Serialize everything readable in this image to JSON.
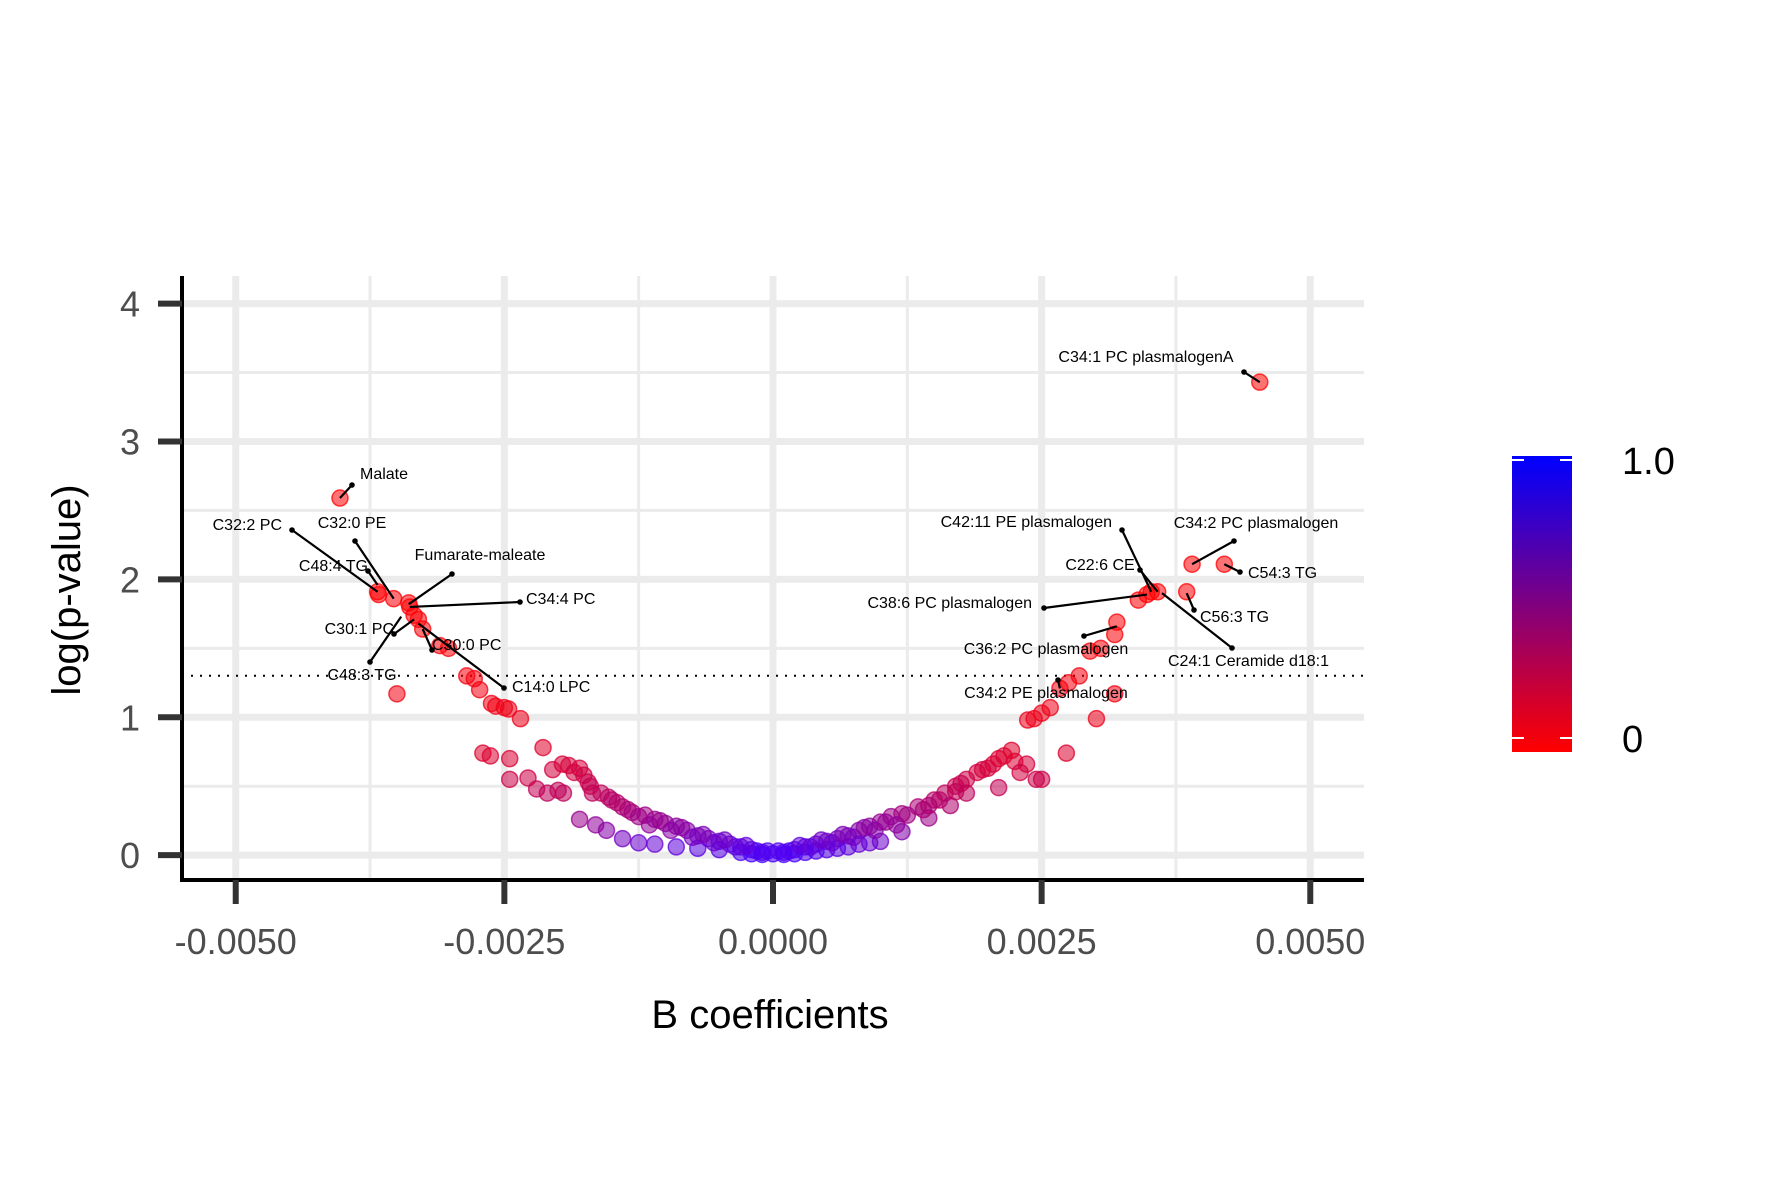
{
  "chart_data": {
    "type": "scatter",
    "xlabel": "B coefficients",
    "ylabel": "log(p-value)",
    "xlim": [
      -0.0055,
      0.0055
    ],
    "ylim": [
      -0.18,
      4.2
    ],
    "x_ticks": [
      -0.005,
      -0.0025,
      0.0,
      0.0025,
      0.005
    ],
    "x_tick_labels": [
      "-0.0050",
      "-0.0025",
      "0.0000",
      "0.0025",
      "0.0050"
    ],
    "y_ticks": [
      0,
      1,
      2,
      3,
      4
    ],
    "y_tick_labels": [
      "0",
      "1",
      "2",
      "3",
      "4"
    ],
    "grid": true,
    "threshold_line": {
      "y": 1.301,
      "style": "dotted"
    },
    "color_scale": {
      "min_label": "0",
      "max_label": "1.0",
      "low_color": "#ff0000",
      "high_color": "#0000ff",
      "legend_position": "right"
    },
    "labeled_points": [
      {
        "label": "C34:1 PC plasmalogenA",
        "x": 0.00453,
        "y": 3.43
      },
      {
        "label": "Malate",
        "x": -0.00403,
        "y": 2.59
      },
      {
        "label": "C32:2 PC",
        "x": -0.00368,
        "y": 1.91
      },
      {
        "label": "C32:0 PE",
        "x": -0.00353,
        "y": 1.86
      },
      {
        "label": "C48:4 TG",
        "x": -0.00368,
        "y": 1.96
      },
      {
        "label": "Fumarate-maleate",
        "x": -0.00339,
        "y": 1.82
      },
      {
        "label": "C34:4 PC",
        "x": -0.00338,
        "y": 1.8
      },
      {
        "label": "C30:1 PC",
        "x": -0.00334,
        "y": 1.71
      },
      {
        "label": "C30:0 PC",
        "x": -0.00326,
        "y": 1.64
      },
      {
        "label": "C48:3 TG",
        "x": -0.00346,
        "y": 1.73
      },
      {
        "label": "C14:0 LPC",
        "x": -0.0033,
        "y": 1.68
      },
      {
        "label": "C42:11 PE plasmalogen",
        "x": 0.00352,
        "y": 1.91
      },
      {
        "label": "C34:2 PC plasmalogen",
        "x": 0.0039,
        "y": 2.11
      },
      {
        "label": "C54:3 TG",
        "x": 0.0042,
        "y": 2.11
      },
      {
        "label": "C22:6 CE",
        "x": 0.00358,
        "y": 1.91
      },
      {
        "label": "C38:6 PC plasmalogen",
        "x": 0.00348,
        "y": 1.89
      },
      {
        "label": "C56:3 TG",
        "x": 0.00385,
        "y": 1.9
      },
      {
        "label": "C36:2 PC plasmalogen",
        "x": 0.0032,
        "y": 1.66
      },
      {
        "label": "C24:1 Ceramide d18:1",
        "x": 0.00362,
        "y": 1.9
      },
      {
        "label": "C34:2 PE plasmalogen",
        "x": 0.00267,
        "y": 1.21
      }
    ],
    "points": [
      [
        0.00453,
        3.43
      ],
      [
        -0.00403,
        2.59
      ],
      [
        0.0039,
        2.11
      ],
      [
        0.0042,
        2.11
      ],
      [
        -0.00368,
        1.91
      ],
      [
        -0.00367,
        1.89
      ],
      [
        -0.00353,
        1.86
      ],
      [
        -0.00339,
        1.83
      ],
      [
        -0.00338,
        1.8
      ],
      [
        -0.00334,
        1.74
      ],
      [
        -0.0033,
        1.71
      ],
      [
        -0.00326,
        1.64
      ],
      [
        0.00352,
        1.91
      ],
      [
        0.00358,
        1.91
      ],
      [
        0.00348,
        1.89
      ],
      [
        0.00385,
        1.91
      ],
      [
        0.0034,
        1.85
      ],
      [
        0.0032,
        1.69
      ],
      [
        0.00318,
        1.6
      ],
      [
        0.00305,
        1.5
      ],
      [
        0.00295,
        1.48
      ],
      [
        0.00285,
        1.3
      ],
      [
        0.00275,
        1.25
      ],
      [
        0.00267,
        1.21
      ],
      [
        -0.00302,
        1.5
      ],
      [
        -0.0031,
        1.52
      ],
      [
        -0.00285,
        1.3
      ],
      [
        -0.00278,
        1.28
      ],
      [
        -0.00273,
        1.2
      ],
      [
        -0.00262,
        1.1
      ],
      [
        -0.00258,
        1.08
      ],
      [
        -0.0025,
        1.07
      ],
      [
        -0.00246,
        1.06
      ],
      [
        -0.00235,
        0.99
      ],
      [
        -0.0035,
        1.17
      ],
      [
        0.00318,
        1.17
      ],
      [
        0.00301,
        0.99
      ],
      [
        0.00273,
        0.74
      ],
      [
        0.00258,
        1.07
      ],
      [
        0.0025,
        1.03
      ],
      [
        0.00243,
        0.99
      ],
      [
        0.00237,
        0.98
      ],
      [
        -0.0027,
        0.74
      ],
      [
        -0.00263,
        0.72
      ],
      [
        -0.00245,
        0.7
      ],
      [
        -0.00245,
        0.55
      ],
      [
        -0.00214,
        0.78
      ],
      [
        -0.00196,
        0.66
      ],
      [
        -0.0019,
        0.65
      ],
      [
        -0.0018,
        0.63
      ],
      [
        -0.00176,
        0.58
      ],
      [
        -0.00172,
        0.53
      ],
      [
        -0.00168,
        0.45
      ],
      [
        -0.00153,
        0.42
      ],
      [
        -0.0014,
        0.35
      ],
      [
        -0.00131,
        0.31
      ],
      [
        -0.00119,
        0.29
      ],
      [
        -0.0011,
        0.26
      ],
      [
        -0.001,
        0.23
      ],
      [
        -0.0009,
        0.21
      ],
      [
        -0.0008,
        0.18
      ],
      [
        -0.0007,
        0.14
      ],
      [
        -0.0006,
        0.12
      ],
      [
        -0.0005,
        0.1
      ],
      [
        -0.0004,
        0.08
      ],
      [
        -0.0003,
        0.06
      ],
      [
        -0.0002,
        0.04
      ],
      [
        -0.0001,
        0.02
      ],
      [
        0.0,
        0.01
      ],
      [
        0.0001,
        0.02
      ],
      [
        0.0002,
        0.04
      ],
      [
        0.0003,
        0.06
      ],
      [
        0.0004,
        0.08
      ],
      [
        0.0005,
        0.1
      ],
      [
        0.0006,
        0.12
      ],
      [
        0.0007,
        0.14
      ],
      [
        0.0008,
        0.18
      ],
      [
        0.0009,
        0.21
      ],
      [
        0.001,
        0.24
      ],
      [
        0.0011,
        0.28
      ],
      [
        0.0012,
        0.3
      ],
      [
        0.00135,
        0.35
      ],
      [
        0.0015,
        0.4
      ],
      [
        0.0016,
        0.45
      ],
      [
        0.0017,
        0.5
      ],
      [
        0.0018,
        0.55
      ],
      [
        0.0019,
        0.6
      ],
      [
        0.002,
        0.63
      ],
      [
        0.0021,
        0.7
      ],
      [
        0.00225,
        0.68
      ],
      [
        0.00236,
        0.66
      ],
      [
        0.0025,
        0.55
      ],
      [
        0.00245,
        0.55
      ],
      [
        0.0023,
        0.6
      ],
      [
        0.0021,
        0.49
      ],
      [
        0.0018,
        0.45
      ],
      [
        0.00165,
        0.36
      ],
      [
        0.00145,
        0.27
      ],
      [
        0.0012,
        0.17
      ],
      [
        0.001,
        0.1
      ],
      [
        0.0009,
        0.09
      ],
      [
        0.0008,
        0.08
      ],
      [
        0.0007,
        0.06
      ],
      [
        0.0006,
        0.05
      ],
      [
        0.0005,
        0.04
      ],
      [
        0.0004,
        0.03
      ],
      [
        0.0003,
        0.02
      ],
      [
        0.0002,
        0.01
      ],
      [
        0.0001,
        0.005
      ],
      [
        -0.0001,
        0.005
      ],
      [
        -0.0002,
        0.01
      ],
      [
        -0.0003,
        0.02
      ],
      [
        -0.0005,
        0.04
      ],
      [
        -0.0007,
        0.05
      ],
      [
        -0.0009,
        0.06
      ],
      [
        -0.0011,
        0.08
      ],
      [
        -0.00125,
        0.09
      ],
      [
        -0.0014,
        0.12
      ],
      [
        -0.00155,
        0.18
      ],
      [
        -0.00165,
        0.22
      ],
      [
        -0.0018,
        0.26
      ],
      [
        -0.00195,
        0.45
      ],
      [
        -0.002,
        0.47
      ],
      [
        -0.0021,
        0.45
      ],
      [
        -0.0022,
        0.48
      ],
      [
        -0.00228,
        0.56
      ],
      [
        -0.0016,
        0.45
      ],
      [
        -0.0015,
        0.4
      ],
      [
        -0.00135,
        0.33
      ],
      [
        -0.00115,
        0.22
      ],
      [
        -0.00095,
        0.18
      ],
      [
        -0.00075,
        0.13
      ],
      [
        -0.00055,
        0.09
      ],
      [
        -0.00035,
        0.06
      ],
      [
        -0.00015,
        0.03
      ],
      [
        0.00015,
        0.03
      ],
      [
        0.00035,
        0.06
      ],
      [
        0.00055,
        0.09
      ],
      [
        0.00075,
        0.13
      ],
      [
        0.00095,
        0.18
      ],
      [
        0.00115,
        0.22
      ],
      [
        0.0014,
        0.33
      ],
      [
        0.00155,
        0.4
      ],
      [
        0.00175,
        0.52
      ],
      [
        0.00195,
        0.62
      ],
      [
        0.00205,
        0.66
      ],
      [
        0.00215,
        0.72
      ],
      [
        0.00222,
        0.76
      ],
      [
        -0.00205,
        0.62
      ],
      [
        -0.00185,
        0.6
      ],
      [
        -0.0017,
        0.5
      ],
      [
        -0.00145,
        0.38
      ],
      [
        -0.00125,
        0.28
      ],
      [
        -0.00105,
        0.25
      ],
      [
        -0.00085,
        0.2
      ],
      [
        -0.00065,
        0.15
      ],
      [
        -0.00045,
        0.11
      ],
      [
        -0.00025,
        0.07
      ],
      [
        -5e-05,
        0.03
      ],
      [
        5e-05,
        0.03
      ],
      [
        0.00025,
        0.07
      ],
      [
        0.00045,
        0.11
      ],
      [
        0.00065,
        0.15
      ],
      [
        0.00085,
        0.2
      ],
      [
        0.00105,
        0.24
      ],
      [
        0.00125,
        0.29
      ],
      [
        0.00145,
        0.36
      ],
      [
        0.0017,
        0.46
      ]
    ]
  }
}
